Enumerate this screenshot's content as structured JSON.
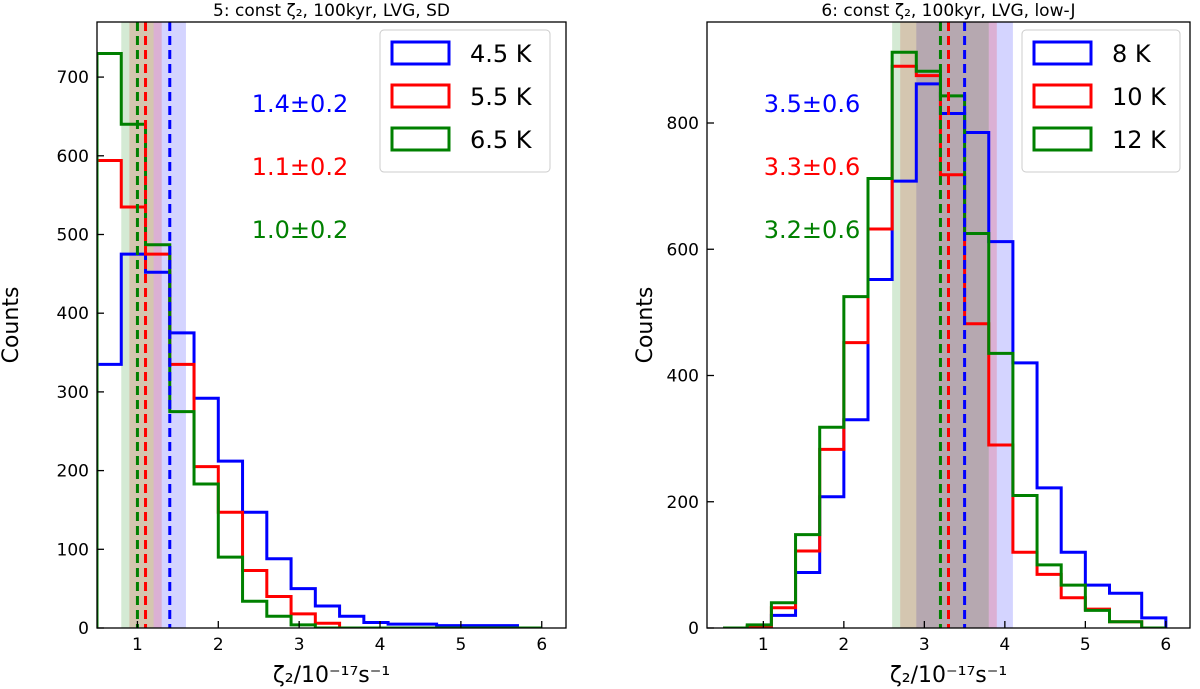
{
  "chart_data": [
    {
      "type": "histogram",
      "title": "5: const ζ₂, 100kyr, LVG, SD",
      "xlabel": "ζ₂/10⁻¹⁷s⁻¹",
      "ylabel": "Counts",
      "xlim": [
        0.5,
        6.3
      ],
      "ylim": [
        0,
        770
      ],
      "xticks": [
        1,
        2,
        3,
        4,
        5,
        6
      ],
      "yticks": [
        0,
        100,
        200,
        300,
        400,
        500,
        600,
        700
      ],
      "bin_edges": [
        0.5,
        0.8,
        1.1,
        1.4,
        1.7,
        2.0,
        2.3,
        2.6,
        2.9,
        3.2,
        3.5,
        3.8,
        4.1,
        4.4,
        4.7,
        5.0,
        5.3,
        5.7,
        6.0
      ],
      "series": [
        {
          "name": "4.5 K",
          "color": "#0000ff",
          "counts": [
            335,
            475,
            452,
            375,
            292,
            212,
            147,
            88,
            50,
            28,
            15,
            7,
            5,
            5,
            3,
            3,
            3,
            0
          ],
          "median": 1.4,
          "band": [
            1.2,
            1.6
          ],
          "annotation": "1.4±0.2"
        },
        {
          "name": "5.5 K",
          "color": "#ff0000",
          "counts": [
            594,
            535,
            475,
            335,
            205,
            147,
            73,
            40,
            18,
            6,
            0,
            0,
            0,
            0,
            0,
            0,
            0,
            0
          ],
          "median": 1.1,
          "band": [
            0.9,
            1.3
          ],
          "annotation": "1.1±0.2"
        },
        {
          "name": "6.5 K",
          "color": "#008000",
          "counts": [
            730,
            640,
            487,
            275,
            183,
            90,
            34,
            15,
            4,
            0,
            0,
            0,
            0,
            0,
            0,
            0,
            0,
            0
          ],
          "median": 1.0,
          "band": [
            0.8,
            1.2
          ],
          "annotation": "1.0±0.2"
        }
      ],
      "legend": "top-right"
    },
    {
      "type": "histogram",
      "title": "6: const ζ₂, 100kyr, LVG, low-J",
      "xlabel": "ζ₂/10⁻¹⁷s⁻¹",
      "ylabel": "Counts",
      "xlim": [
        0.3,
        6.3
      ],
      "ylim": [
        0,
        960
      ],
      "xticks": [
        1,
        2,
        3,
        4,
        5,
        6
      ],
      "yticks": [
        0,
        200,
        400,
        600,
        800
      ],
      "bin_edges": [
        0.5,
        0.8,
        1.1,
        1.4,
        1.7,
        2.0,
        2.3,
        2.6,
        2.9,
        3.2,
        3.5,
        3.8,
        4.1,
        4.4,
        4.7,
        5.0,
        5.3,
        5.7,
        6.0
      ],
      "series": [
        {
          "name": "8 K",
          "color": "#0000ff",
          "counts": [
            0,
            2,
            20,
            88,
            208,
            330,
            552,
            708,
            862,
            815,
            785,
            612,
            420,
            222,
            120,
            68,
            55,
            16
          ],
          "median": 3.5,
          "band": [
            2.9,
            4.1
          ],
          "annotation": "3.5±0.6"
        },
        {
          "name": "10 K",
          "color": "#ff0000",
          "counts": [
            0,
            3,
            32,
            122,
            283,
            452,
            632,
            890,
            875,
            718,
            482,
            290,
            120,
            85,
            48,
            30,
            10,
            0
          ],
          "median": 3.3,
          "band": [
            2.7,
            3.9
          ],
          "annotation": "3.3±0.6"
        },
        {
          "name": "12 K",
          "color": "#008000",
          "counts": [
            0,
            5,
            40,
            148,
            318,
            525,
            712,
            912,
            882,
            843,
            625,
            435,
            210,
            100,
            68,
            28,
            10,
            0
          ],
          "median": 3.2,
          "band": [
            2.6,
            3.8
          ],
          "annotation": "3.2±0.6"
        }
      ],
      "legend": "top-right"
    }
  ]
}
